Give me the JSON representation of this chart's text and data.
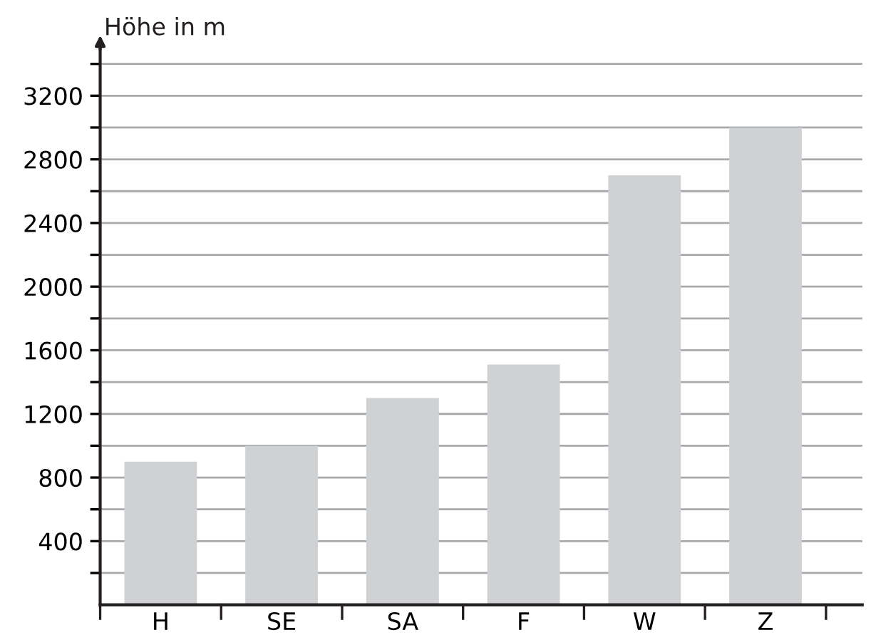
{
  "chart_data": {
    "type": "bar",
    "ylabel": "Höhe in m",
    "categories": [
      "H",
      "SE",
      "SA",
      "F",
      "W",
      "Z"
    ],
    "values": [
      900,
      1000,
      1300,
      1510,
      2700,
      3000
    ],
    "color": "#d0d1d3",
    "ylim": [
      0,
      3500
    ],
    "yticks": [
      {
        "value": 200,
        "label": null
      },
      400,
      {
        "value": 600,
        "label": null
      },
      800,
      {
        "value": 1000,
        "label": null
      },
      1200,
      {
        "value": 1400,
        "label": null
      },
      1600,
      {
        "value": 1800,
        "label": null
      },
      2000,
      {
        "value": 2200,
        "label": null
      },
      2400,
      {
        "value": 2600,
        "label": null
      },
      2800,
      {
        "value": 3000,
        "label": null
      },
      3200,
      {
        "value": 3400,
        "label": null
      }
    ],
    "grid": "y"
  }
}
